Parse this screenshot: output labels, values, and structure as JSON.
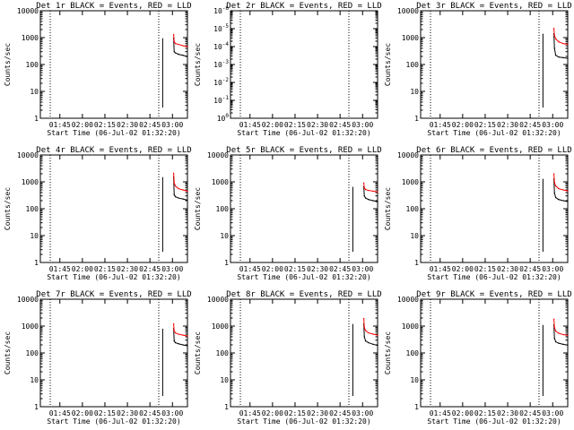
{
  "figure": {
    "xtick_labels": [
      "01:45",
      "02:00",
      "02:15",
      "02:30",
      "02:45",
      "03:00"
    ],
    "xtick_minutes": [
      45,
      60,
      75,
      90,
      105,
      120
    ],
    "x_range_minutes": [
      32,
      130
    ],
    "event_start_minutes": 113.5,
    "colors": {
      "events": "#000000",
      "lld": "#ff0000"
    }
  },
  "chart_data": [
    {
      "type": "line",
      "title": "Det 1r BLACK = Events, RED = LLD",
      "xlabel": "Start Time (06-Jul-02 01:32:20)",
      "ylabel": "Counts/sec",
      "yscale": "log",
      "ylim": [
        1,
        10000
      ],
      "ytick_labels": [
        "1",
        "10",
        "100",
        "1000",
        "10000"
      ],
      "series": [
        {
          "name": "Events",
          "x": [
            "03:00:48",
            "03:01:10",
            "03:02:00",
            "03:04:00",
            "03:07:00",
            "03:10:00"
          ],
          "y": [
            950,
            300,
            270,
            240,
            220,
            200
          ]
        },
        {
          "name": "LLD",
          "x": [
            "03:00:48",
            "03:01:10",
            "03:02:00",
            "03:04:00",
            "03:07:00",
            "03:10:00"
          ],
          "y": [
            1300,
            700,
            600,
            560,
            500,
            460
          ]
        }
      ]
    },
    {
      "type": "line",
      "title": "Det 2r BLACK = Events, RED = LLD",
      "xlabel": "Start Time (06-Jul-02 01:32:20)",
      "ylabel": "Counts/sec",
      "yscale": "log",
      "ylim": [
        1,
        1.0000000000000002e-06
      ],
      "ytick_labels": [
        "10^0",
        "10^-1",
        "10^-2",
        "10^-3",
        "10^-4",
        "10^-5",
        "10^-6"
      ],
      "series": [
        {
          "name": "Events",
          "x": [],
          "y": []
        },
        {
          "name": "LLD",
          "x": [],
          "y": []
        }
      ]
    },
    {
      "type": "line",
      "title": "Det 3r BLACK = Events, RED = LLD",
      "xlabel": "Start Time (06-Jul-02 01:32:20)",
      "ylabel": "Counts/sec",
      "yscale": "log",
      "ylim": [
        1,
        10000
      ],
      "ytick_labels": [
        "1",
        "10",
        "100",
        "1000",
        "10000"
      ],
      "series": [
        {
          "name": "Events",
          "x": [
            "03:00:48",
            "03:01:10",
            "03:02:00",
            "03:04:00",
            "03:07:00",
            "03:10:00"
          ],
          "y": [
            1400,
            400,
            220,
            190,
            180,
            170
          ]
        },
        {
          "name": "LLD",
          "x": [
            "03:00:48",
            "03:01:10",
            "03:02:00",
            "03:04:00",
            "03:07:00",
            "03:10:00"
          ],
          "y": [
            2200,
            1200,
            900,
            700,
            600,
            560
          ]
        }
      ]
    },
    {
      "type": "line",
      "title": "Det 4r BLACK = Events, RED = LLD",
      "xlabel": "Start Time (06-Jul-02 01:32:20)",
      "ylabel": "Counts/sec",
      "yscale": "log",
      "ylim": [
        1,
        10000
      ],
      "ytick_labels": [
        "1",
        "10",
        "100",
        "1000",
        "10000"
      ],
      "series": [
        {
          "name": "Events",
          "x": [
            "03:00:48",
            "03:01:10",
            "03:02:00",
            "03:04:00",
            "03:07:00",
            "03:10:00"
          ],
          "y": [
            1500,
            330,
            280,
            250,
            230,
            210
          ]
        },
        {
          "name": "LLD",
          "x": [
            "03:00:48",
            "03:01:10",
            "03:02:00",
            "03:04:00",
            "03:07:00",
            "03:10:00"
          ],
          "y": [
            2100,
            900,
            700,
            560,
            500,
            450
          ]
        }
      ]
    },
    {
      "type": "line",
      "title": "Det 5r BLACK = Events, RED = LLD",
      "xlabel": "Start Time (06-Jul-02 01:32:20)",
      "ylabel": "Counts/sec",
      "yscale": "log",
      "ylim": [
        1,
        10000
      ],
      "ytick_labels": [
        "1",
        "10",
        "100",
        "1000",
        "10000"
      ],
      "series": [
        {
          "name": "Events",
          "x": [
            "03:00:48",
            "03:01:10",
            "03:02:00",
            "03:04:00",
            "03:07:00",
            "03:10:00"
          ],
          "y": [
            650,
            300,
            250,
            220,
            200,
            180
          ]
        },
        {
          "name": "LLD",
          "x": [
            "03:00:48",
            "03:01:10",
            "03:02:00",
            "03:04:00",
            "03:07:00",
            "03:10:00"
          ],
          "y": [
            900,
            600,
            520,
            480,
            450,
            420
          ]
        }
      ]
    },
    {
      "type": "line",
      "title": "Det 6r BLACK = Events, RED = LLD",
      "xlabel": "Start Time (06-Jul-02 01:32:20)",
      "ylabel": "Counts/sec",
      "yscale": "log",
      "ylim": [
        1,
        10000
      ],
      "ytick_labels": [
        "1",
        "10",
        "100",
        "1000",
        "10000"
      ],
      "series": [
        {
          "name": "Events",
          "x": [
            "03:00:48",
            "03:01:10",
            "03:02:00",
            "03:04:00",
            "03:07:00",
            "03:10:00"
          ],
          "y": [
            1300,
            380,
            260,
            220,
            200,
            185
          ]
        },
        {
          "name": "LLD",
          "x": [
            "03:00:48",
            "03:01:10",
            "03:02:00",
            "03:04:00",
            "03:07:00",
            "03:10:00"
          ],
          "y": [
            2000,
            950,
            700,
            560,
            500,
            460
          ]
        }
      ]
    },
    {
      "type": "line",
      "title": "Det 7r BLACK = Events, RED = LLD",
      "xlabel": "Start Time (06-Jul-02 01:32:20)",
      "ylabel": "Counts/sec",
      "yscale": "log",
      "ylim": [
        1,
        10000
      ],
      "ytick_labels": [
        "1",
        "10",
        "100",
        "1000",
        "10000"
      ],
      "series": [
        {
          "name": "Events",
          "x": [
            "03:00:48",
            "03:01:10",
            "03:02:00",
            "03:04:00",
            "03:07:00",
            "03:10:00"
          ],
          "y": [
            800,
            280,
            240,
            220,
            200,
            185
          ]
        },
        {
          "name": "LLD",
          "x": [
            "03:00:48",
            "03:01:10",
            "03:02:00",
            "03:04:00",
            "03:07:00",
            "03:10:00"
          ],
          "y": [
            1200,
            640,
            560,
            500,
            460,
            430
          ]
        }
      ]
    },
    {
      "type": "line",
      "title": "Det 8r BLACK = Events, RED = LLD",
      "xlabel": "Start Time (06-Jul-02 01:32:20)",
      "ylabel": "Counts/sec",
      "yscale": "log",
      "ylim": [
        1,
        10000
      ],
      "ytick_labels": [
        "1",
        "10",
        "100",
        "1000",
        "10000"
      ],
      "series": [
        {
          "name": "Events",
          "x": [
            "03:00:48",
            "03:01:10",
            "03:02:00",
            "03:04:00",
            "03:07:00",
            "03:10:00"
          ],
          "y": [
            1200,
            400,
            280,
            240,
            210,
            190
          ]
        },
        {
          "name": "LLD",
          "x": [
            "03:00:48",
            "03:01:10",
            "03:02:00",
            "03:04:00",
            "03:07:00",
            "03:10:00"
          ],
          "y": [
            1900,
            900,
            680,
            560,
            500,
            460
          ]
        }
      ]
    },
    {
      "type": "line",
      "title": "Det 9r BLACK = Events, RED = LLD",
      "xlabel": "Start Time (06-Jul-02 01:32:20)",
      "ylabel": "Counts/sec",
      "yscale": "log",
      "ylim": [
        1,
        10000
      ],
      "ytick_labels": [
        "1",
        "10",
        "100",
        "1000",
        "10000"
      ],
      "series": [
        {
          "name": "Events",
          "x": [
            "03:00:48",
            "03:01:10",
            "03:02:00",
            "03:04:00",
            "03:07:00",
            "03:10:00"
          ],
          "y": [
            1100,
            350,
            260,
            230,
            210,
            195
          ]
        },
        {
          "name": "LLD",
          "x": [
            "03:00:48",
            "03:01:10",
            "03:02:00",
            "03:04:00",
            "03:07:00",
            "03:10:00"
          ],
          "y": [
            1800,
            880,
            650,
            540,
            480,
            450
          ]
        }
      ]
    }
  ]
}
